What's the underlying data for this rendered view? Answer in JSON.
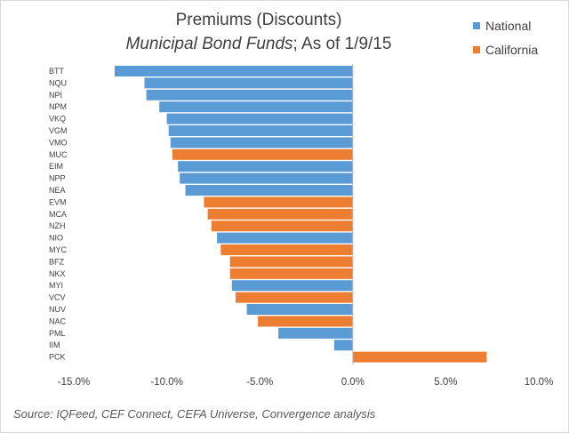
{
  "chart_data": {
    "type": "bar",
    "orientation": "horizontal",
    "title": "Premiums (Discounts)",
    "subtitle_italic": "Municipal Bond Funds",
    "subtitle_rest": "; As of 1/9/15",
    "categories": [
      "BTT",
      "NQU",
      "NPI",
      "NPM",
      "VKQ",
      "VGM",
      "VMO",
      "MUC",
      "EIM",
      "NPP",
      "NEA",
      "EVM",
      "MCA",
      "NZH",
      "NIO",
      "MYC",
      "BFZ",
      "NKX",
      "MYI",
      "VCV",
      "NUV",
      "NAC",
      "PML",
      "IIM",
      "PCK"
    ],
    "values": [
      -12.8,
      -11.2,
      -11.1,
      -10.4,
      -10.0,
      -9.9,
      -9.8,
      -9.7,
      -9.4,
      -9.3,
      -9.0,
      -8.0,
      -7.8,
      -7.6,
      -7.3,
      -7.1,
      -6.6,
      -6.6,
      -6.5,
      -6.3,
      -5.7,
      -5.1,
      -4.0,
      -1.0,
      7.2
    ],
    "groups": [
      "National",
      "National",
      "National",
      "National",
      "National",
      "National",
      "National",
      "California",
      "National",
      "National",
      "National",
      "California",
      "California",
      "California",
      "National",
      "California",
      "California",
      "California",
      "National",
      "California",
      "National",
      "California",
      "National",
      "National",
      "California"
    ],
    "series": [
      {
        "name": "National",
        "color": "#5b9bd5"
      },
      {
        "name": "California",
        "color": "#ed7d31"
      }
    ],
    "x_ticks": [
      "-15.0%",
      "-10.0%",
      "-5.0%",
      "0.0%",
      "5.0%",
      "10.0%"
    ],
    "xlim": [
      -15,
      10
    ],
    "legend_position": "top-right",
    "grid": false,
    "source": "Source:  IQFeed, CEF Connect, CEFA Universe, Convergence analysis"
  }
}
